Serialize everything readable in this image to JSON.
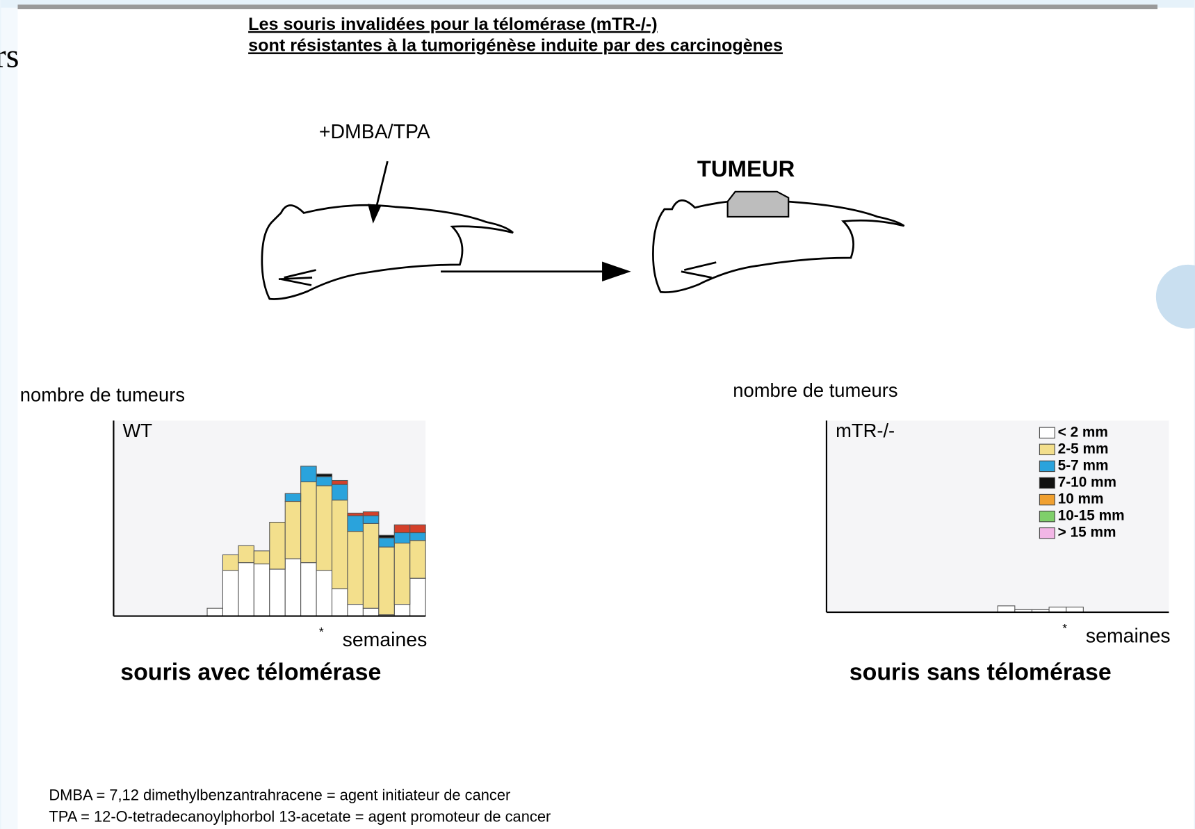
{
  "header": {
    "title": [
      "Les souris invalidées pour la télomérase (mTR-/-)",
      "sont résistantes à la tumorigénèse induite par des carcinogènes"
    ]
  },
  "edge_text": "rs",
  "diagram": {
    "treatment": "+DMBA/TPA",
    "result": "TUMEUR"
  },
  "chart_data": [
    {
      "type": "bar",
      "stacked": true,
      "ylabel": "nombre de tumeurs",
      "label": "WT",
      "xlabel": "semaines",
      "note": "*",
      "caption": "souris avec télomérase",
      "categories": [
        null,
        null,
        null,
        null,
        null,
        null,
        null,
        null,
        null,
        null,
        null,
        null,
        null,
        null,
        null,
        null,
        null,
        null,
        null,
        null
      ],
      "ylim": [
        0,
        150
      ],
      "series": [
        {
          "color": "#ffffff",
          "values": [
            0,
            0,
            0,
            0,
            0,
            0,
            6,
            35,
            41,
            40,
            36,
            44,
            41,
            35,
            21,
            9,
            6,
            1,
            9,
            29
          ]
        },
        {
          "color": "#f3df8c",
          "values": [
            0,
            0,
            0,
            0,
            0,
            0,
            0,
            12,
            13,
            10,
            36,
            44,
            62,
            65,
            68,
            56,
            65,
            52,
            47,
            29
          ]
        },
        {
          "color": "#2aa3dc",
          "values": [
            0,
            0,
            0,
            0,
            0,
            0,
            0,
            0,
            0,
            0,
            0,
            6,
            12,
            7,
            12,
            12,
            6,
            7,
            8,
            6
          ]
        },
        {
          "color": "#111111",
          "values": [
            0,
            0,
            0,
            0,
            0,
            0,
            0,
            0,
            0,
            0,
            0,
            0,
            0,
            2,
            0,
            0,
            0,
            2,
            0,
            0
          ]
        },
        {
          "color": "#d4402a",
          "values": [
            0,
            0,
            0,
            0,
            0,
            0,
            0,
            0,
            0,
            0,
            0,
            0,
            0,
            0,
            3,
            2,
            3,
            0,
            6,
            6
          ]
        },
        {
          "color": "#7fcf6a",
          "values": [
            0,
            0,
            0,
            0,
            0,
            0,
            0,
            0,
            0,
            0,
            0,
            0,
            0,
            0,
            0,
            0,
            0,
            0,
            0,
            0
          ]
        },
        {
          "color": "#f2b6e6",
          "values": [
            0,
            0,
            0,
            0,
            0,
            0,
            0,
            0,
            0,
            0,
            0,
            0,
            0,
            0,
            0,
            0,
            0,
            0,
            0,
            0
          ]
        }
      ]
    },
    {
      "type": "bar",
      "stacked": true,
      "ylabel": "nombre de tumeurs",
      "label": "mTR-/-",
      "xlabel": "semaines",
      "note": "*",
      "caption": "souris sans télomérase",
      "categories": [
        null,
        null,
        null,
        null,
        null,
        null,
        null,
        null,
        null,
        null,
        null,
        null,
        null,
        null,
        null,
        null,
        null,
        null,
        null,
        null
      ],
      "ylim": [
        0,
        150
      ],
      "legend": "upper right",
      "series": [
        {
          "name": "< 2 mm",
          "color": "#ffffff",
          "values": [
            0,
            0,
            0,
            0,
            0,
            0,
            0,
            0,
            0,
            0,
            5,
            2,
            2,
            4,
            4,
            0,
            0,
            0,
            0,
            0
          ]
        },
        {
          "name": "2-5 mm",
          "color": "#f3df8c",
          "values": [
            0,
            0,
            0,
            0,
            0,
            0,
            0,
            0,
            0,
            0,
            0,
            0,
            0,
            0,
            0,
            0,
            0,
            0,
            0,
            0
          ]
        },
        {
          "name": "5-7 mm",
          "color": "#2aa3dc",
          "values": [
            0,
            0,
            0,
            0,
            0,
            0,
            0,
            0,
            0,
            0,
            0,
            0,
            0,
            0,
            0,
            0,
            0,
            0,
            0,
            0
          ]
        },
        {
          "name": "7-10 mm",
          "color": "#111111",
          "values": [
            0,
            0,
            0,
            0,
            0,
            0,
            0,
            0,
            0,
            0,
            0,
            0,
            0,
            0,
            0,
            0,
            0,
            0,
            0,
            0
          ]
        },
        {
          "name": "10 mm",
          "color": "#f0a030",
          "values": [
            0,
            0,
            0,
            0,
            0,
            0,
            0,
            0,
            0,
            0,
            0,
            0,
            0,
            0,
            0,
            0,
            0,
            0,
            0,
            0
          ]
        },
        {
          "name": "10-15 mm",
          "color": "#7fcf6a",
          "values": [
            0,
            0,
            0,
            0,
            0,
            0,
            0,
            0,
            0,
            0,
            0,
            0,
            0,
            0,
            0,
            0,
            0,
            0,
            0,
            0
          ]
        },
        {
          "name": "> 15 mm",
          "color": "#f2b6e6",
          "values": [
            0,
            0,
            0,
            0,
            0,
            0,
            0,
            0,
            0,
            0,
            0,
            0,
            0,
            0,
            0,
            0,
            0,
            0,
            0,
            0
          ]
        }
      ]
    }
  ],
  "footnotes": [
    "DMBA = 7,12 dimethylbenzantrahracene = agent initiateur de cancer",
    "TPA = 12-O-tetradecanoylphorbol 13-acetate = agent promoteur de cancer"
  ]
}
